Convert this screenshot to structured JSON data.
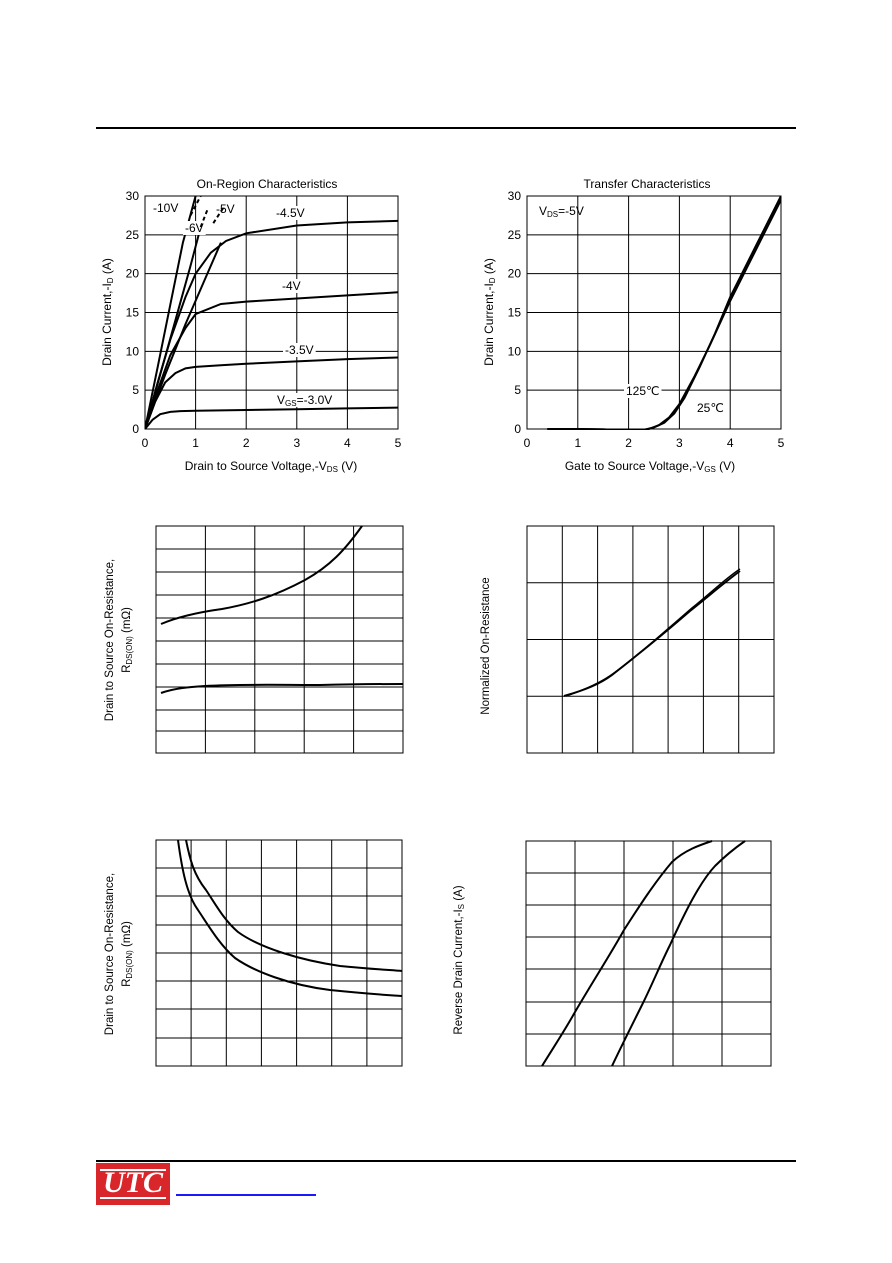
{
  "logo": {
    "text": "UTC"
  },
  "chart_data": [
    {
      "type": "line",
      "title": "On-Region Characteristics",
      "xlabel": "Drain to Source Voltage,-V",
      "xlabel_sub": "DS",
      "xlabel_unit": " (V)",
      "ylabel": "Drain Current,-I",
      "ylabel_sub": "D",
      "ylabel_unit": " (A)",
      "xlim": [
        0,
        5
      ],
      "ylim": [
        0,
        30
      ],
      "xticks": [
        "0",
        "1",
        "2",
        "3",
        "4",
        "5"
      ],
      "yticks": [
        "0",
        "5",
        "10",
        "15",
        "20",
        "25",
        "30"
      ],
      "grid": true,
      "series": [
        {
          "name": "-10V",
          "x": [
            0,
            0.25,
            0.5,
            0.75,
            1.0
          ],
          "y": [
            0,
            8,
            16,
            24,
            30
          ]
        },
        {
          "name": "-6V",
          "x": [
            0,
            0.3,
            0.6,
            0.9,
            1.1
          ],
          "y": [
            0,
            7,
            14,
            21,
            26
          ]
        },
        {
          "name": "-5V",
          "x": [
            0,
            0.4,
            0.8,
            1.2,
            1.5
          ],
          "y": [
            0,
            7,
            13.5,
            19.5,
            24
          ]
        },
        {
          "name": "-4.5V",
          "x": [
            0,
            0.25,
            0.5,
            0.8,
            1.0,
            1.3,
            1.6,
            2.0,
            3.0,
            4.0,
            5.0
          ],
          "y": [
            0,
            6,
            11.5,
            17,
            20,
            22.7,
            24.2,
            25.2,
            26.2,
            26.6,
            26.8
          ]
        },
        {
          "name": "-4V",
          "x": [
            0,
            0.25,
            0.5,
            0.8,
            1.0,
            1.5,
            2.0,
            3.0,
            4.0,
            5.0
          ],
          "y": [
            0,
            5,
            9.5,
            13,
            14.8,
            16.1,
            16.4,
            16.8,
            17.2,
            17.6
          ]
        },
        {
          "name": "-3.5V",
          "x": [
            0,
            0.2,
            0.4,
            0.6,
            0.8,
            1.0,
            1.5,
            2.0,
            3.0,
            4.0,
            5.0
          ],
          "y": [
            0,
            3.5,
            6,
            7.2,
            7.8,
            8.0,
            8.2,
            8.4,
            8.7,
            9.0,
            9.2
          ]
        },
        {
          "name": "V",
          "name_sub": "GS",
          "name_suffix": "=-3.0V",
          "x": [
            0,
            0.15,
            0.3,
            0.5,
            0.7,
            1.0,
            2.0,
            3.0,
            4.0,
            5.0
          ],
          "y": [
            0,
            1.2,
            1.9,
            2.2,
            2.3,
            2.35,
            2.45,
            2.55,
            2.65,
            2.75
          ]
        }
      ]
    },
    {
      "type": "line",
      "title": "Transfer Characteristics",
      "xlabel": "Gate to Source Voltage,-V",
      "xlabel_sub": "GS",
      "xlabel_unit": " (V)",
      "ylabel": "Drain Current,-I",
      "ylabel_sub": "D",
      "ylabel_unit": " (A)",
      "xlim": [
        0,
        5
      ],
      "ylim": [
        0,
        30
      ],
      "xticks": [
        "0",
        "1",
        "2",
        "3",
        "4",
        "5"
      ],
      "yticks": [
        "0",
        "5",
        "10",
        "15",
        "20",
        "25",
        "30"
      ],
      "grid": true,
      "condition": {
        "label": "V",
        "label_sub": "DS",
        "label_suffix": "=-5V"
      },
      "series": [
        {
          "name": "125℃",
          "x": [
            0.4,
            1.0,
            1.5,
            2.0,
            2.2,
            2.4,
            2.6,
            2.8,
            3.0,
            3.3,
            3.6,
            4.0,
            4.5,
            5.0
          ],
          "y": [
            0,
            0,
            -0.05,
            -0.15,
            -0.15,
            0,
            0.5,
            1.5,
            3.2,
            6.8,
            10.8,
            16.5,
            23.0,
            29.5
          ]
        },
        {
          "name": "25℃",
          "x": [
            0.4,
            1.0,
            1.5,
            2.0,
            2.3,
            2.5,
            2.7,
            2.9,
            3.1,
            3.4,
            3.7,
            4.0,
            4.5,
            5.0
          ],
          "y": [
            0,
            0,
            -0.05,
            -0.15,
            -0.1,
            0.2,
            0.8,
            2.0,
            4.0,
            8.0,
            12.3,
            17.0,
            23.5,
            30.0
          ]
        }
      ]
    }
  ]
}
